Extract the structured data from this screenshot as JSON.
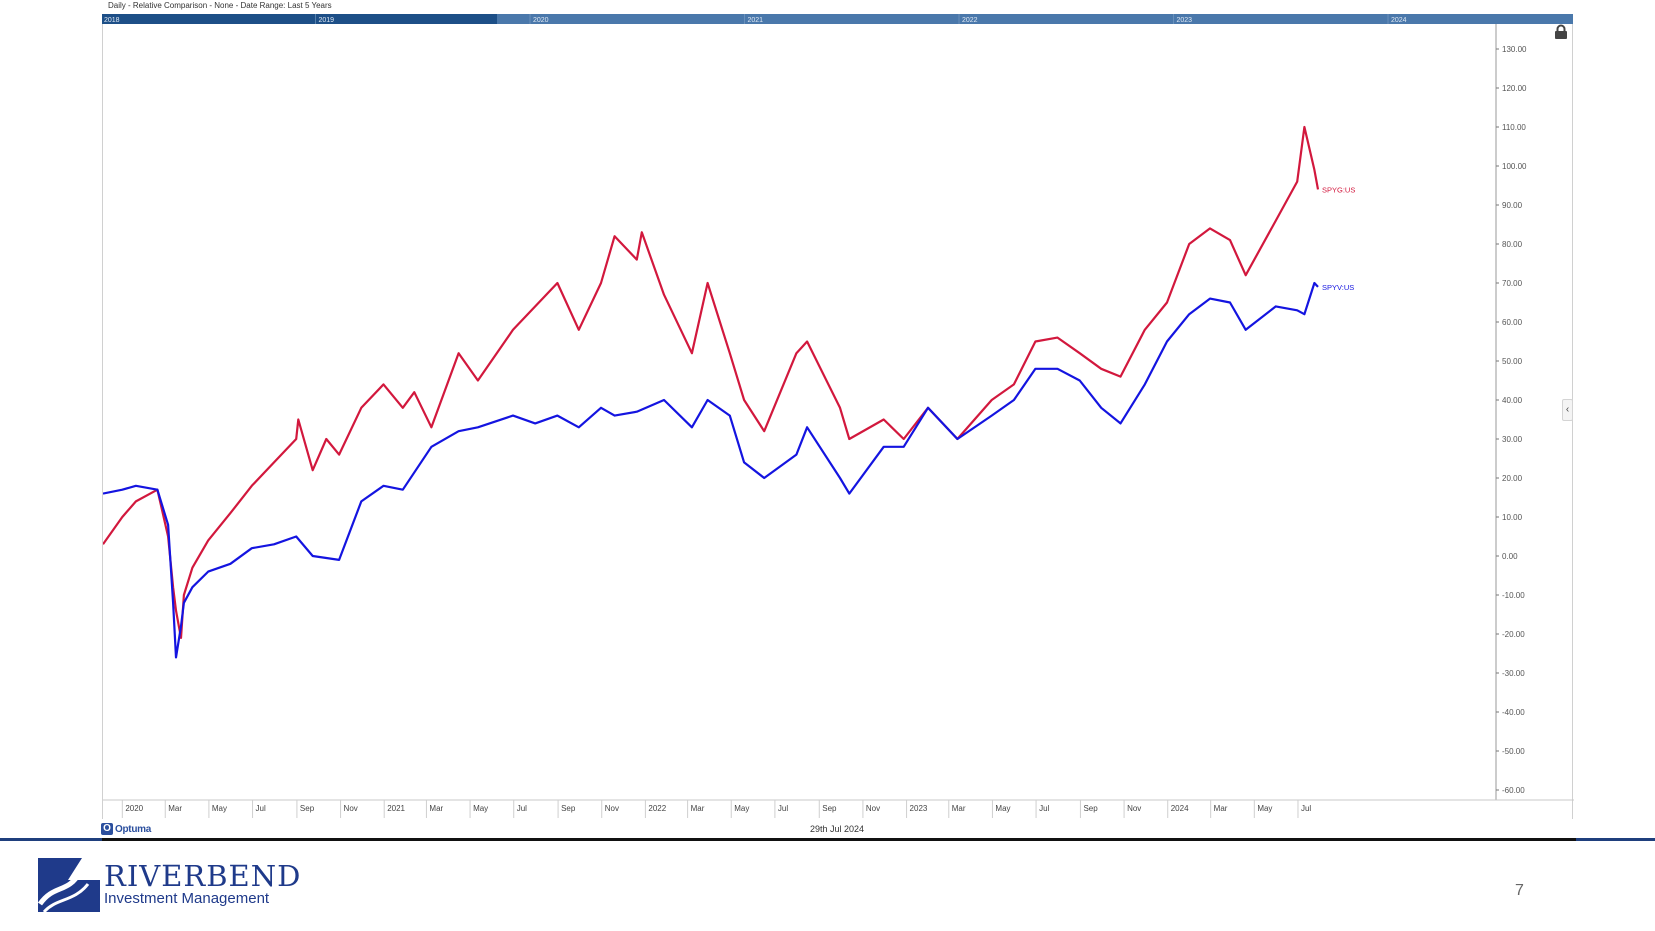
{
  "header": {
    "title": "Daily - Relative Comparison - None - Date Range: Last 5 Years"
  },
  "navigator": {
    "years": [
      "2018",
      "2019",
      "2020",
      "2021",
      "2022",
      "2023",
      "2024"
    ]
  },
  "footer": {
    "date": "29th Jul 2024",
    "optuma_label": "Optuma"
  },
  "brand": {
    "name": "RIVERBEND",
    "subtitle": "Investment Management"
  },
  "page_number": "7",
  "colors": {
    "growth": "#d2183d",
    "value": "#1414e0",
    "axis": "#555555",
    "brand": "#1f3a8a"
  },
  "chart_data": {
    "type": "line",
    "title": "Daily - Relative Comparison - None - Date Range: Last 5 Years",
    "xlabel": "",
    "ylabel": "",
    "x_tick_labels": [
      "2020",
      "Mar",
      "May",
      "Jul",
      "Sep",
      "Nov",
      "2021",
      "Mar",
      "May",
      "Jul",
      "Sep",
      "Nov",
      "2022",
      "Mar",
      "May",
      "Jul",
      "Sep",
      "Nov",
      "2023",
      "Mar",
      "May",
      "Jul",
      "Sep",
      "Nov",
      "2024",
      "Mar",
      "May",
      "Jul"
    ],
    "x_range": [
      "2019-12-05",
      "2024-07-29"
    ],
    "ylim": [
      -60,
      130
    ],
    "y_tick_labels": [
      "130.00",
      "120.00",
      "110.00",
      "100.00",
      "90.00",
      "80.00",
      "70.00",
      "60.00",
      "50.00",
      "40.00",
      "30.00",
      "20.00",
      "10.00",
      "0.00",
      "-10.00",
      "-20.00",
      "-30.00",
      "-40.00",
      "-50.00",
      "-60.00"
    ],
    "grid": false,
    "series": [
      {
        "name": "SPYG:US",
        "color": "#d2183d",
        "x": [
          "2019-12-05",
          "2020-01-01",
          "2020-01-20",
          "2020-02-19",
          "2020-03-05",
          "2020-03-12",
          "2020-03-16",
          "2020-03-23",
          "2020-03-27",
          "2020-04-08",
          "2020-04-30",
          "2020-05-31",
          "2020-06-30",
          "2020-07-31",
          "2020-08-31",
          "2020-09-03",
          "2020-09-23",
          "2020-10-12",
          "2020-10-30",
          "2020-11-30",
          "2020-12-31",
          "2021-01-27",
          "2021-02-12",
          "2021-03-08",
          "2021-04-15",
          "2021-05-12",
          "2021-06-30",
          "2021-07-31",
          "2021-08-31",
          "2021-09-30",
          "2021-10-31",
          "2021-11-19",
          "2021-12-20",
          "2021-12-27",
          "2022-01-27",
          "2022-03-07",
          "2022-03-29",
          "2022-04-29",
          "2022-05-19",
          "2022-06-16",
          "2022-07-31",
          "2022-08-15",
          "2022-09-30",
          "2022-10-13",
          "2022-11-30",
          "2022-12-28",
          "2023-01-31",
          "2023-03-13",
          "2023-04-30",
          "2023-05-31",
          "2023-06-30",
          "2023-07-31",
          "2023-08-31",
          "2023-09-30",
          "2023-10-27",
          "2023-11-30",
          "2023-12-31",
          "2024-01-31",
          "2024-02-29",
          "2024-03-28",
          "2024-04-19",
          "2024-05-31",
          "2024-06-30",
          "2024-07-10",
          "2024-07-24",
          "2024-07-29"
        ],
        "y": [
          3,
          10,
          14,
          17,
          5,
          -8,
          -14,
          -21,
          -10,
          -3,
          4,
          11,
          18,
          24,
          30,
          35,
          22,
          30,
          26,
          38,
          44,
          38,
          42,
          33,
          52,
          45,
          58,
          64,
          70,
          58,
          70,
          82,
          76,
          83,
          67,
          52,
          70,
          52,
          40,
          32,
          52,
          55,
          38,
          30,
          35,
          30,
          38,
          30,
          40,
          44,
          55,
          56,
          52,
          48,
          46,
          58,
          65,
          80,
          84,
          81,
          72,
          86,
          96,
          110,
          99,
          94
        ],
        "label": "SPYG:US"
      },
      {
        "name": "SPYV:US",
        "color": "#1414e0",
        "x": [
          "2019-12-05",
          "2020-01-01",
          "2020-01-20",
          "2020-02-19",
          "2020-03-05",
          "2020-03-12",
          "2020-03-16",
          "2020-03-23",
          "2020-03-27",
          "2020-04-08",
          "2020-04-30",
          "2020-05-31",
          "2020-06-30",
          "2020-07-31",
          "2020-08-31",
          "2020-09-23",
          "2020-10-30",
          "2020-11-30",
          "2020-12-31",
          "2021-01-27",
          "2021-03-08",
          "2021-04-15",
          "2021-05-12",
          "2021-06-30",
          "2021-07-31",
          "2021-08-31",
          "2021-09-30",
          "2021-10-31",
          "2021-11-19",
          "2021-12-20",
          "2022-01-27",
          "2022-03-07",
          "2022-03-29",
          "2022-04-29",
          "2022-05-19",
          "2022-06-16",
          "2022-07-31",
          "2022-08-15",
          "2022-09-30",
          "2022-10-13",
          "2022-11-30",
          "2022-12-28",
          "2023-01-31",
          "2023-03-13",
          "2023-04-30",
          "2023-05-31",
          "2023-06-30",
          "2023-07-31",
          "2023-08-31",
          "2023-09-30",
          "2023-10-27",
          "2023-11-30",
          "2023-12-31",
          "2024-01-31",
          "2024-02-29",
          "2024-03-28",
          "2024-04-19",
          "2024-05-31",
          "2024-06-30",
          "2024-07-10",
          "2024-07-24",
          "2024-07-29"
        ],
        "y": [
          16,
          17,
          18,
          17,
          8,
          -12,
          -26,
          -18,
          -12,
          -8,
          -4,
          -2,
          2,
          3,
          5,
          0,
          -1,
          14,
          18,
          17,
          28,
          32,
          33,
          36,
          34,
          36,
          33,
          38,
          36,
          37,
          40,
          33,
          40,
          36,
          24,
          20,
          26,
          33,
          20,
          16,
          28,
          28,
          38,
          30,
          36,
          40,
          48,
          48,
          45,
          38,
          34,
          44,
          55,
          62,
          66,
          65,
          58,
          64,
          63,
          62,
          70,
          69
        ],
        "label": "SPYV:US"
      }
    ]
  }
}
